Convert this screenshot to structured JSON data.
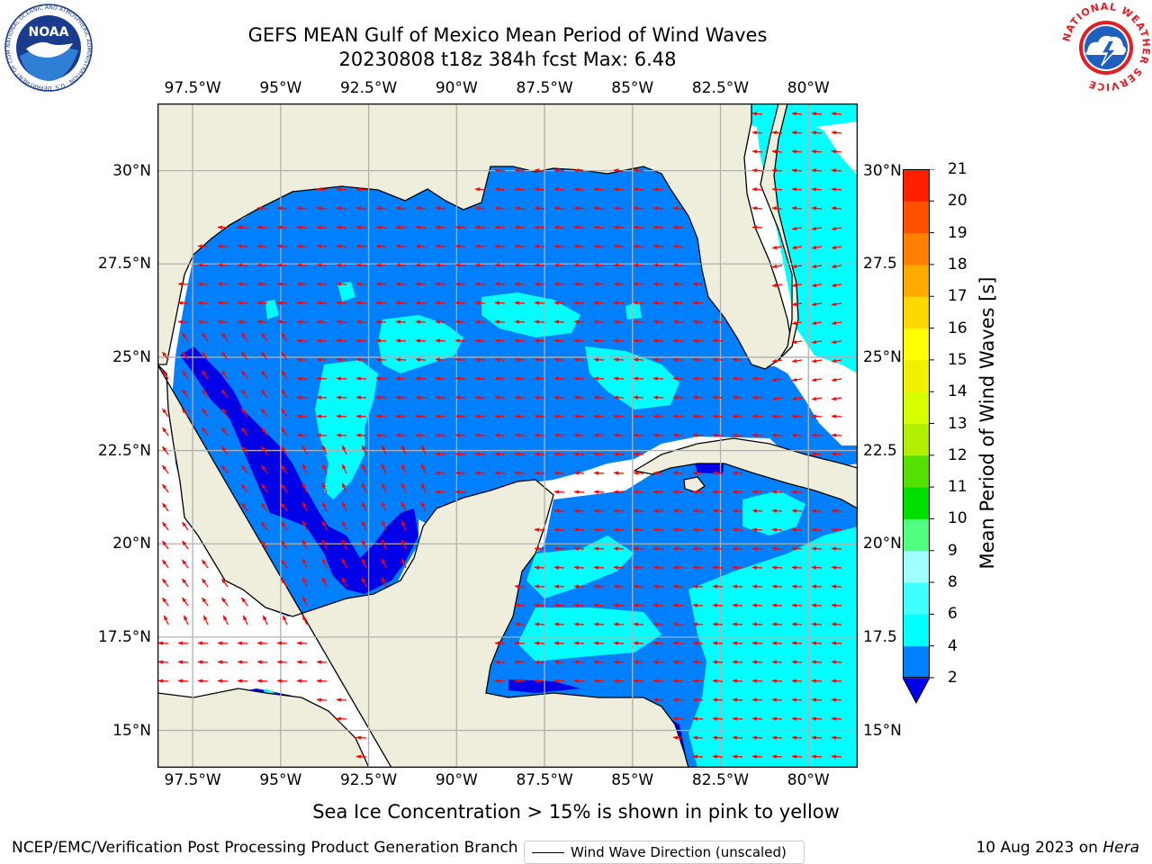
{
  "title_line1": "GEFS MEAN Gulf of Mexico Mean Period of Wind Waves",
  "title_line2": "20230808 t18z 384h fcst   Max: 6.48",
  "colorbar": {
    "label": "Mean Period of Wind Waves [s]",
    "ticks": [
      "2",
      "4",
      "6",
      "8",
      "9",
      "10",
      "11",
      "12",
      "13",
      "14",
      "15",
      "16",
      "17",
      "18",
      "19",
      "20",
      "21"
    ],
    "colors": [
      "#0000e8",
      "#0080ff",
      "#00ffff",
      "#40ffff",
      "#a0ffff",
      "#50ff80",
      "#00e000",
      "#55e000",
      "#b0f000",
      "#d8ff00",
      "#f0f000",
      "#ffff00",
      "#ffd800",
      "#ffaa00",
      "#ff8000",
      "#ff5000",
      "#ff2000",
      "#ff0000"
    ]
  },
  "map": {
    "lon_range": [
      -98.5,
      -78.6
    ],
    "lat_range": [
      14.0,
      31.8
    ],
    "lon_ticks": [
      "97.5°W",
      "95°W",
      "92.5°W",
      "90°W",
      "87.5°W",
      "85°W",
      "82.5°W",
      "80°W"
    ],
    "lat_ticks_left": [
      "30°N",
      "27.5°N",
      "25°N",
      "22.5°N",
      "20°N",
      "17.5°N",
      "15°N"
    ],
    "lat_ticks_right": [
      "30°N",
      "27.5",
      "25°N",
      "22.5",
      "20°N",
      "17.5",
      "15°N"
    ],
    "land_color": "#efeedd",
    "arrow_color": "#ff0000"
  },
  "legend": {
    "label": "Wind Wave Direction (unscaled)"
  },
  "bottom_note": "Sea Ice Concentration > 15% is shown in pink to yellow",
  "footer": {
    "left": "NCEP/EMC/Verification Post Processing Product Generation Branch",
    "right_date": "10 Aug 2023 on ",
    "right_host": "Hera"
  },
  "logos": {
    "noaa_name": "noaa-logo",
    "noaa_text": "NOAA",
    "noaa_ring": "NATIONAL OCEANIC AND ATMOSPHERIC ADMINISTRATION · U.S. DEPARTMENT OF COMMERCE",
    "nws_name": "nws-logo",
    "nws_ring": "NATIONAL WEATHER SERVICE"
  }
}
